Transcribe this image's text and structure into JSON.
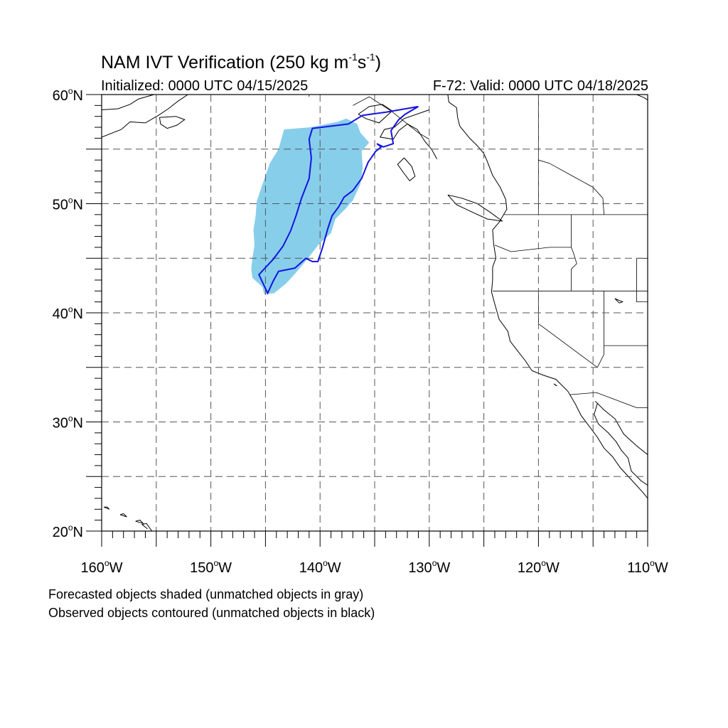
{
  "title": {
    "main": "NAM IVT Verification (250 kg m",
    "sup1": "-1",
    "mid": "s",
    "sup2": "-1",
    "close": ")"
  },
  "subtitle_left": "Initialized: 0000 UTC 04/15/2025",
  "subtitle_right": "F-72: Valid: 0000 UTC 04/18/2025",
  "notes": [
    "Forecasted objects shaded (unmatched objects in gray)",
    "Observed objects contoured (unmatched objects in black)"
  ],
  "colors": {
    "forecast_fill": "#87CEEB",
    "observed_contour": "#1414E0",
    "coastline": "#000000",
    "gridline": "#555555"
  },
  "map": {
    "lon_range": [
      -160,
      -110
    ],
    "lat_range": [
      20,
      60
    ],
    "gridlines": "dashed, every 5 degrees",
    "lat_labels": [
      {
        "value": 60,
        "num": "60",
        "hemi": "N"
      },
      {
        "value": 50,
        "num": "50",
        "hemi": "N"
      },
      {
        "value": 40,
        "num": "40",
        "hemi": "N"
      },
      {
        "value": 30,
        "num": "30",
        "hemi": "N"
      },
      {
        "value": 20,
        "num": "20",
        "hemi": "N"
      }
    ],
    "lon_labels": [
      {
        "value": -160,
        "num": "160",
        "hemi": "W"
      },
      {
        "value": -150,
        "num": "150",
        "hemi": "W"
      },
      {
        "value": -140,
        "num": "140",
        "hemi": "W"
      },
      {
        "value": -130,
        "num": "130",
        "hemi": "W"
      },
      {
        "value": -120,
        "num": "120",
        "hemi": "W"
      },
      {
        "value": -110,
        "num": "110",
        "hemi": "W"
      }
    ],
    "forecast_object": [
      [
        -143.3,
        56.8
      ],
      [
        -140.9,
        57.0
      ],
      [
        -138.4,
        57.5
      ],
      [
        -137.6,
        57.8
      ],
      [
        -136.6,
        57.3
      ],
      [
        -136.3,
        56.5
      ],
      [
        -135.5,
        55.6
      ],
      [
        -136.2,
        54.8
      ],
      [
        -136.1,
        53.3
      ],
      [
        -136.3,
        51.8
      ],
      [
        -137.0,
        50.3
      ],
      [
        -137.7,
        49.5
      ],
      [
        -138.6,
        48.6
      ],
      [
        -139.0,
        47.3
      ],
      [
        -140.1,
        46.3
      ],
      [
        -141.1,
        45.0
      ],
      [
        -142.1,
        43.8
      ],
      [
        -143.1,
        42.7
      ],
      [
        -144.2,
        41.8
      ],
      [
        -145.1,
        41.7
      ],
      [
        -145.3,
        42.4
      ],
      [
        -146.2,
        43.2
      ],
      [
        -146.3,
        44.0
      ],
      [
        -146.2,
        45.0
      ],
      [
        -146.0,
        46.2
      ],
      [
        -146.1,
        47.6
      ],
      [
        -145.9,
        48.9
      ],
      [
        -145.8,
        50.2
      ],
      [
        -145.3,
        51.7
      ],
      [
        -144.6,
        53.7
      ],
      [
        -143.8,
        55.0
      ]
    ],
    "observed_object": [
      [
        -140.7,
        56.9
      ],
      [
        -137.4,
        57.3
      ],
      [
        -136.1,
        58.1
      ],
      [
        -133.9,
        58.4
      ],
      [
        -131.0,
        58.9
      ],
      [
        -132.2,
        58.2
      ],
      [
        -132.8,
        57.7
      ],
      [
        -133.5,
        56.7
      ],
      [
        -133.3,
        55.5
      ],
      [
        -134.2,
        55.2
      ],
      [
        -134.8,
        55.5
      ],
      [
        -134.4,
        55.2
      ],
      [
        -134.9,
        54.8
      ],
      [
        -135.6,
        53.8
      ],
      [
        -136.2,
        52.3
      ],
      [
        -137.0,
        51.2
      ],
      [
        -137.8,
        50.6
      ],
      [
        -138.3,
        49.7
      ],
      [
        -138.9,
        48.9
      ],
      [
        -139.3,
        47.7
      ],
      [
        -139.8,
        45.9
      ],
      [
        -140.2,
        44.7
      ],
      [
        -140.7,
        44.7
      ],
      [
        -141.3,
        45.0
      ],
      [
        -142.3,
        44.1
      ],
      [
        -143.8,
        43.8
      ],
      [
        -144.3,
        42.9
      ],
      [
        -144.8,
        41.8
      ],
      [
        -145.6,
        43.5
      ],
      [
        -144.3,
        44.9
      ],
      [
        -143.4,
        46.1
      ],
      [
        -142.7,
        47.5
      ],
      [
        -142.2,
        48.9
      ],
      [
        -141.7,
        50.5
      ],
      [
        -141.0,
        52.3
      ],
      [
        -140.8,
        54.2
      ],
      [
        -141.0,
        55.9
      ]
    ],
    "coastlines": [
      [
        [
          -128.3,
          60.0
        ],
        [
          -128.2,
          59.3
        ],
        [
          -127.5,
          58.8
        ],
        [
          -127.4,
          57.9
        ],
        [
          -127.2,
          57.1
        ],
        [
          -126.3,
          56.0
        ],
        [
          -125.6,
          55.3
        ],
        [
          -125.0,
          54.6
        ],
        [
          -124.7,
          53.9
        ],
        [
          -124.2,
          52.6
        ],
        [
          -123.5,
          51.5
        ],
        [
          -123.0,
          50.4
        ],
        [
          -122.9,
          49.5
        ],
        [
          -123.6,
          48.3
        ],
        [
          -124.2,
          47.6
        ],
        [
          -124.1,
          46.3
        ],
        [
          -123.9,
          45.0
        ],
        [
          -124.2,
          44.2
        ],
        [
          -124.2,
          43.0
        ],
        [
          -124.3,
          41.9
        ],
        [
          -124.0,
          40.8
        ],
        [
          -123.6,
          39.4
        ],
        [
          -122.8,
          38.3
        ],
        [
          -122.6,
          37.4
        ],
        [
          -121.9,
          36.5
        ],
        [
          -121.2,
          35.6
        ],
        [
          -120.6,
          34.7
        ],
        [
          -119.6,
          34.3
        ],
        [
          -118.4,
          33.9
        ],
        [
          -117.3,
          32.8
        ],
        [
          -116.6,
          31.6
        ],
        [
          -116.1,
          30.6
        ],
        [
          -115.5,
          29.8
        ],
        [
          -114.6,
          28.6
        ],
        [
          -114.0,
          27.6
        ],
        [
          -113.2,
          26.8
        ],
        [
          -112.5,
          25.8
        ],
        [
          -111.4,
          24.6
        ],
        [
          -110.4,
          23.5
        ],
        [
          -110.0,
          23.0
        ]
      ],
      [
        [
          -114.6,
          31.7
        ],
        [
          -114.9,
          30.7
        ],
        [
          -114.5,
          29.8
        ],
        [
          -113.6,
          29.0
        ],
        [
          -112.9,
          28.2
        ],
        [
          -112.4,
          27.4
        ],
        [
          -111.8,
          26.7
        ],
        [
          -111.5,
          25.5
        ],
        [
          -110.6,
          24.6
        ],
        [
          -110.0,
          24.2
        ]
      ],
      [
        [
          -114.8,
          31.9
        ],
        [
          -114.0,
          31.1
        ],
        [
          -113.0,
          30.3
        ],
        [
          -112.2,
          28.9
        ],
        [
          -111.0,
          27.8
        ],
        [
          -110.0,
          27.0
        ]
      ],
      [
        [
          -130.0,
          58.6
        ],
        [
          -132.3,
          57.8
        ],
        [
          -133.2,
          57.0
        ],
        [
          -134.1,
          56.8
        ],
        [
          -134.5,
          56.1
        ],
        [
          -133.3,
          55.9
        ],
        [
          -132.8,
          56.7
        ],
        [
          -132.0,
          57.3
        ],
        [
          -131.1,
          56.8
        ],
        [
          -130.4,
          55.7
        ],
        [
          -129.8,
          55.0
        ],
        [
          -129.3,
          54.1
        ]
      ],
      [
        [
          -136.5,
          58.2
        ],
        [
          -135.5,
          58.9
        ],
        [
          -134.3,
          59.1
        ],
        [
          -133.4,
          58.5
        ],
        [
          -134.6,
          57.4
        ],
        [
          -135.8,
          57.8
        ],
        [
          -136.5,
          58.2
        ]
      ],
      [
        [
          -132.3,
          54.2
        ],
        [
          -131.6,
          53.4
        ],
        [
          -131.3,
          52.5
        ],
        [
          -131.8,
          52.1
        ],
        [
          -132.4,
          52.9
        ],
        [
          -132.9,
          53.6
        ],
        [
          -132.3,
          54.2
        ]
      ],
      [
        [
          -128.3,
          50.8
        ],
        [
          -127.0,
          50.5
        ],
        [
          -125.6,
          50.0
        ],
        [
          -124.4,
          49.2
        ],
        [
          -123.3,
          48.4
        ],
        [
          -124.7,
          48.6
        ],
        [
          -126.0,
          49.2
        ],
        [
          -127.5,
          49.9
        ],
        [
          -128.3,
          50.8
        ]
      ],
      [
        [
          -160.0,
          58.6
        ],
        [
          -158.5,
          58.7
        ],
        [
          -157.4,
          59.1
        ],
        [
          -156.6,
          59.6
        ],
        [
          -155.2,
          60.0
        ]
      ],
      [
        [
          -160.0,
          56.1
        ],
        [
          -158.2,
          56.8
        ],
        [
          -157.4,
          57.5
        ],
        [
          -156.0,
          57.4
        ],
        [
          -154.8,
          58.1
        ],
        [
          -153.9,
          58.7
        ],
        [
          -153.0,
          59.4
        ],
        [
          -152.1,
          60.0
        ]
      ],
      [
        [
          -154.7,
          57.9
        ],
        [
          -153.2,
          58.0
        ],
        [
          -152.4,
          57.7
        ],
        [
          -153.1,
          57.2
        ],
        [
          -154.0,
          56.9
        ],
        [
          -154.6,
          57.3
        ],
        [
          -154.7,
          57.9
        ]
      ],
      [
        [
          -111.0,
          60.0
        ],
        [
          -110.3,
          59.7
        ],
        [
          -110.0,
          59.5
        ]
      ],
      [
        [
          -155.4,
          20.0
        ],
        [
          -155.9,
          20.7
        ],
        [
          -156.3,
          20.6
        ],
        [
          -155.8,
          20.2
        ]
      ],
      [
        [
          -156.9,
          20.9
        ],
        [
          -156.2,
          20.7
        ],
        [
          -156.5,
          21.0
        ],
        [
          -156.9,
          20.9
        ]
      ],
      [
        [
          -158.3,
          21.5
        ],
        [
          -157.7,
          21.3
        ],
        [
          -158.0,
          21.6
        ],
        [
          -158.3,
          21.5
        ]
      ],
      [
        [
          -159.8,
          22.2
        ],
        [
          -159.3,
          22.0
        ],
        [
          -159.5,
          22.2
        ],
        [
          -159.8,
          22.2
        ]
      ],
      [
        [
          -118.6,
          33.5
        ],
        [
          -118.3,
          33.3
        ],
        [
          -118.5,
          33.4
        ]
      ],
      [
        [
          -113.0,
          41.3
        ],
        [
          -112.3,
          41.0
        ],
        [
          -112.6,
          40.9
        ],
        [
          -113.0,
          41.3
        ]
      ]
    ],
    "borders": [
      [
        [
          -123.2,
          49.0
        ],
        [
          -110.0,
          49.0
        ]
      ],
      [
        [
          -124.2,
          42.0
        ],
        [
          -110.0,
          42.0
        ]
      ],
      [
        [
          -117.0,
          49.0
        ],
        [
          -117.0,
          46.0
        ],
        [
          -116.8,
          45.5
        ],
        [
          -116.5,
          44.5
        ],
        [
          -117.0,
          44.0
        ],
        [
          -117.0,
          42.0
        ]
      ],
      [
        [
          -124.0,
          46.2
        ],
        [
          -122.5,
          45.6
        ],
        [
          -119.0,
          46.0
        ],
        [
          -117.0,
          46.0
        ]
      ],
      [
        [
          -120.0,
          42.0
        ],
        [
          -120.0,
          39.0
        ],
        [
          -114.6,
          35.0
        ]
      ],
      [
        [
          -114.0,
          42.0
        ],
        [
          -114.0,
          36.2
        ],
        [
          -114.6,
          35.0
        ]
      ],
      [
        [
          -114.0,
          37.0
        ],
        [
          -110.0,
          37.0
        ]
      ],
      [
        [
          -111.0,
          45.0
        ],
        [
          -110.0,
          45.0
        ]
      ],
      [
        [
          -111.0,
          45.0
        ],
        [
          -111.0,
          41.0
        ],
        [
          -110.0,
          41.0
        ]
      ],
      [
        [
          -117.1,
          32.5
        ],
        [
          -114.7,
          32.7
        ],
        [
          -111.0,
          31.3
        ],
        [
          -110.0,
          31.3
        ]
      ],
      [
        [
          -141.0,
          60.0
        ],
        [
          -141.0,
          59.8
        ]
      ],
      [
        [
          -137.0,
          59.0
        ],
        [
          -135.5,
          59.8
        ],
        [
          -133.5,
          58.5
        ],
        [
          -131.0,
          56.5
        ],
        [
          -130.0,
          55.9
        ]
      ],
      [
        [
          -120.0,
          60.0
        ],
        [
          -120.0,
          49.0
        ]
      ],
      [
        [
          -114.0,
          49.0
        ],
        [
          -114.1,
          50.5
        ],
        [
          -115.0,
          51.5
        ],
        [
          -117.0,
          52.6
        ],
        [
          -119.0,
          53.7
        ],
        [
          -120.0,
          54.0
        ]
      ]
    ]
  }
}
